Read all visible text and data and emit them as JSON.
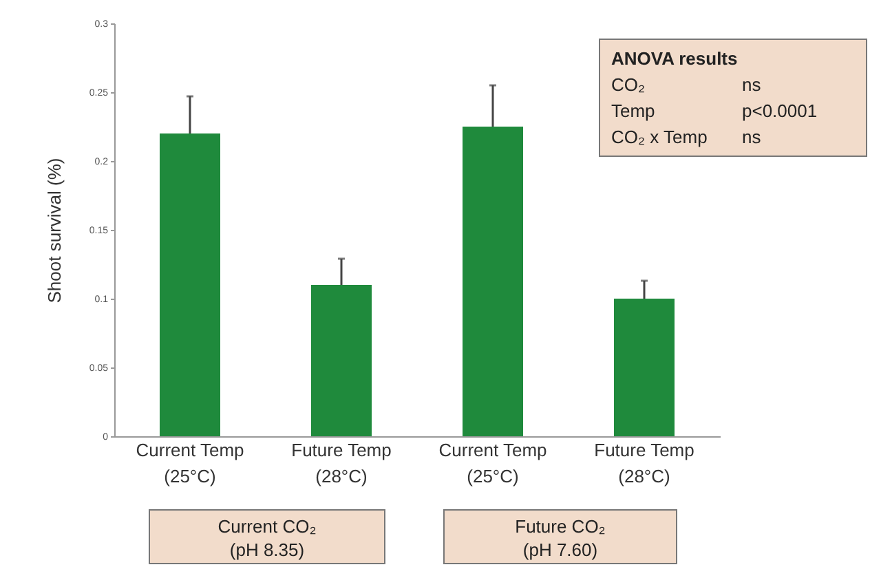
{
  "chart_data": {
    "type": "bar",
    "ylabel": "Shoot survival (%)",
    "categories": [
      "Current Temp (25°C)",
      "Future Temp (28°C)",
      "Current Temp (25°C)",
      "Future Temp (28°C)"
    ],
    "values": [
      0.22,
      0.11,
      0.225,
      0.1
    ],
    "errors": [
      [
        0.22,
        0.247
      ],
      [
        0.11,
        0.129
      ],
      [
        0.225,
        0.255
      ],
      [
        0.1,
        0.113
      ]
    ],
    "color": "#1f8a3c",
    "ylim": [
      0,
      0.3
    ],
    "yticks": [
      0,
      0.05,
      0.1,
      0.15,
      0.2,
      0.25,
      0.3
    ],
    "annotations": [
      "ANOVA results",
      "CO₂ ns",
      "Temp p<0.0001",
      "CO₂ x Temp ns",
      "Current CO₂ (pH 8.35)",
      "Future CO₂ (pH 7.60)"
    ]
  }
}
